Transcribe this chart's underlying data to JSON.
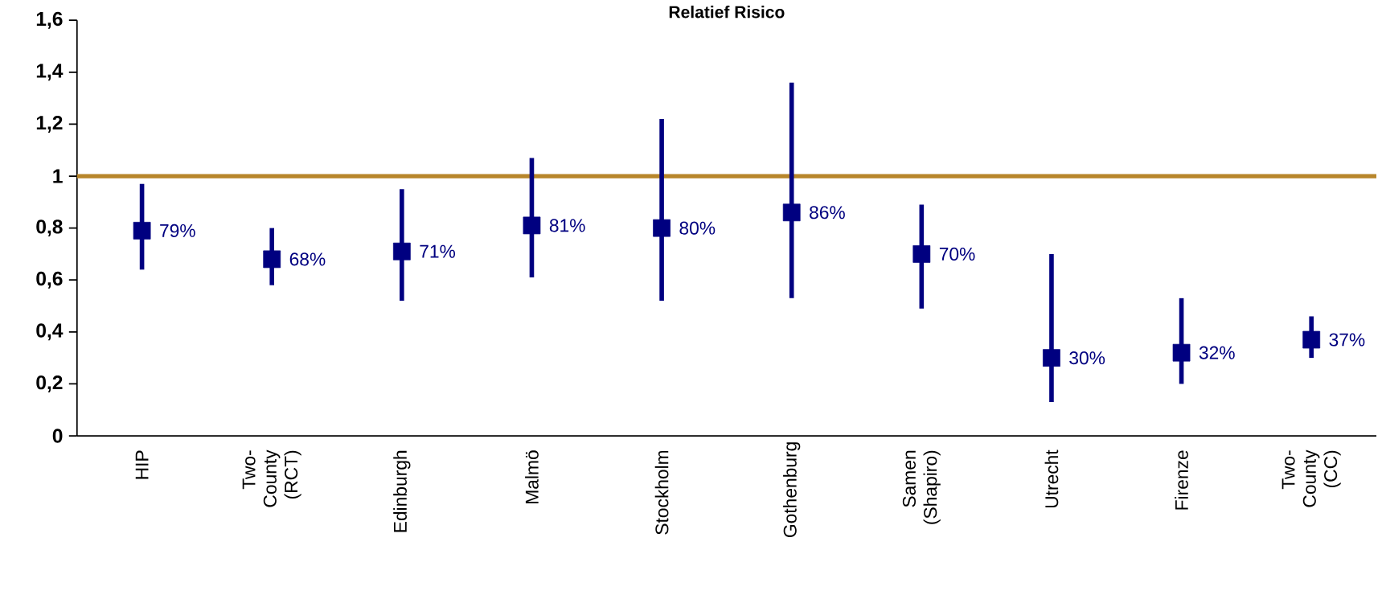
{
  "chart_data": {
    "type": "scatter",
    "title": "Relatief Risico",
    "categories": [
      "HIP",
      "Two-County (RCT)",
      "Edinburgh",
      "Malmö",
      "Stockholm",
      "Gothenburg",
      "Samen (Shapiro)",
      "Utrecht",
      "Firenze",
      "Two-County (CC)"
    ],
    "values": [
      0.79,
      0.68,
      0.71,
      0.81,
      0.8,
      0.86,
      0.7,
      0.3,
      0.32,
      0.37
    ],
    "errors": [
      [
        0.64,
        0.97
      ],
      [
        0.58,
        0.8
      ],
      [
        0.52,
        0.95
      ],
      [
        0.61,
        1.07
      ],
      [
        0.52,
        1.22
      ],
      [
        0.53,
        1.36
      ],
      [
        0.49,
        0.89
      ],
      [
        0.13,
        0.7
      ],
      [
        0.2,
        0.53
      ],
      [
        0.3,
        0.46
      ]
    ],
    "value_labels": [
      "79%",
      "68%",
      "71%",
      "81%",
      "80%",
      "86%",
      "70%",
      "30%",
      "32%",
      "37%"
    ],
    "color": "#000080",
    "marker": "square",
    "ylim": [
      0,
      1.6
    ],
    "yticks": [
      0,
      {
        "value": 0.2,
        "label": "0,2"
      },
      {
        "value": 0.4,
        "label": "0,4"
      },
      {
        "value": 0.6,
        "label": "0,6"
      },
      {
        "value": 0.8,
        "label": "0,8"
      },
      1,
      {
        "value": 1.2,
        "label": "1,2"
      },
      {
        "value": 1.4,
        "label": "1,4"
      },
      {
        "value": 1.6,
        "label": "1,6"
      }
    ],
    "ref_lines": [
      {
        "axis": "y",
        "value": 1,
        "color": "#b8862b"
      }
    ],
    "grid": false
  }
}
